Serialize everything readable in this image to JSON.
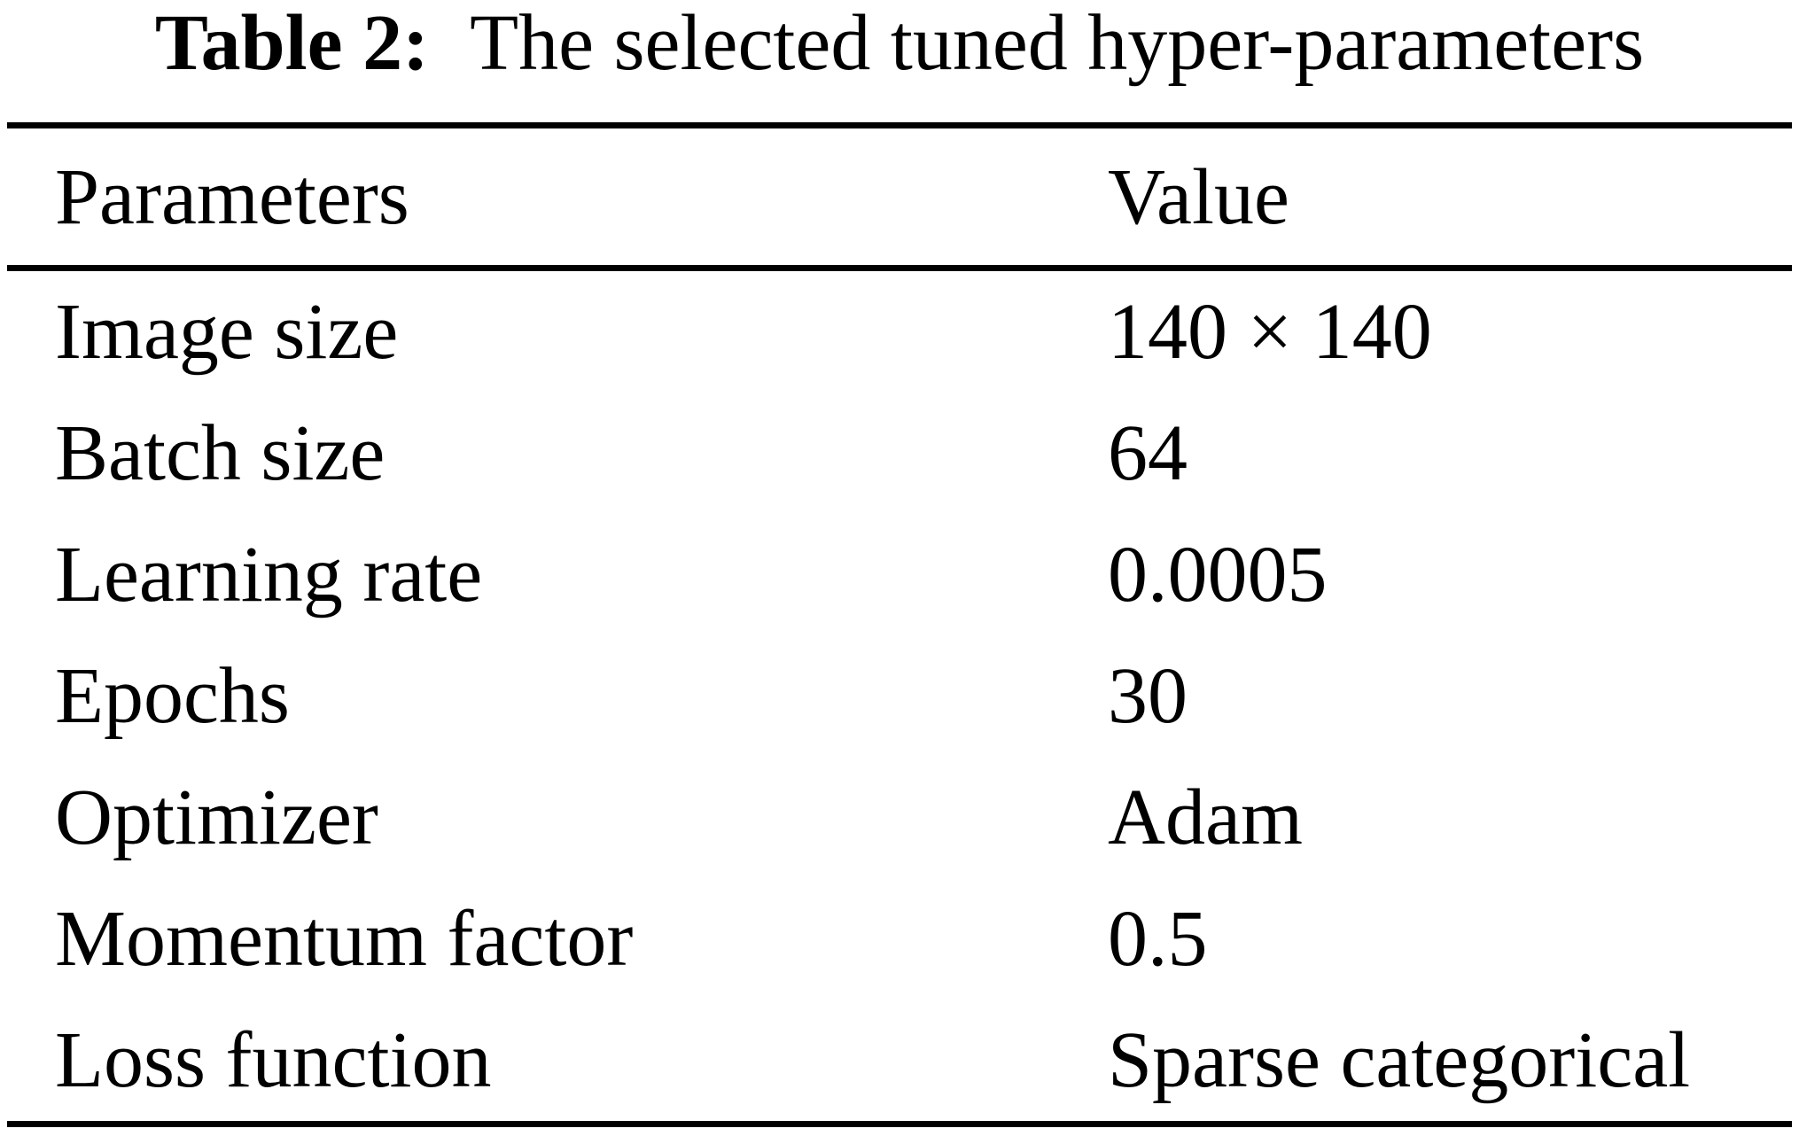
{
  "page": {
    "background_color": "#ffffff",
    "text_color": "#000000"
  },
  "caption": {
    "label": "Table 2:",
    "text": "The selected tuned hyper-parameters"
  },
  "table": {
    "columns": [
      "Parameters",
      "Value"
    ],
    "rows": [
      {
        "parameter": "Image size",
        "value": "140 × 140"
      },
      {
        "parameter": "Batch size",
        "value": "64"
      },
      {
        "parameter": "Learning rate",
        "value": "0.0005"
      },
      {
        "parameter": "Epochs",
        "value": "30"
      },
      {
        "parameter": "Optimizer",
        "value": "Adam"
      },
      {
        "parameter": "Momentum factor",
        "value": "0.5"
      },
      {
        "parameter": "Loss function",
        "value": "Sparse categorical"
      }
    ]
  }
}
